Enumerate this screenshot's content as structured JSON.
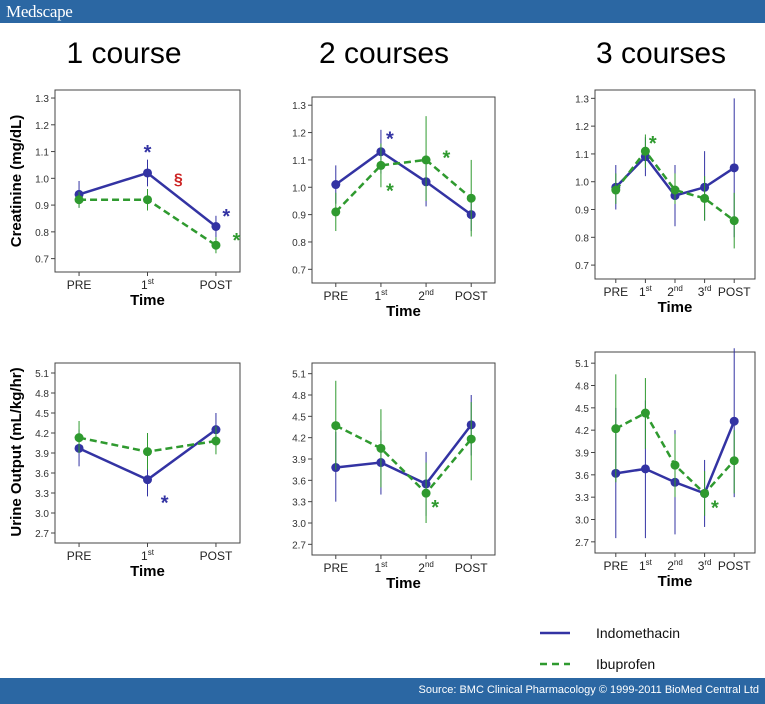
{
  "header": {
    "logo": "Medscape"
  },
  "footer": {
    "source": "Source: BMC Clinical Pharmacology © 1999-2011 BioMed Central Ltd"
  },
  "columns": [
    "1 course",
    "2 courses",
    "3 courses"
  ],
  "row_labels": [
    "Creatinine (mg/dL)",
    "Urine Output (mL/kg/hr)"
  ],
  "legend": [
    {
      "name": "Indomethacin",
      "color": "#3333a3",
      "style": "solid"
    },
    {
      "name": "Ibuprofen",
      "color": "#2f9a2f",
      "style": "dashed"
    }
  ],
  "colors": {
    "indomethacin": "#3333a3",
    "ibuprofen": "#2f9a2f",
    "section_mark": "#cc2222",
    "brand_bar": "#2b67a3"
  },
  "chart_data": [
    {
      "type": "line",
      "panel": "1 course / creatinine",
      "title": "1 course",
      "ylabel": "Creatinine (mg/dL)",
      "xlabel": "Time",
      "categories": [
        "PRE",
        "1st",
        "POST"
      ],
      "ylim": [
        0.65,
        1.33
      ],
      "yticks": [
        0.7,
        0.8,
        0.9,
        1.0,
        1.1,
        1.2,
        1.3
      ],
      "ytick_labels": [
        "0.7",
        "0.8",
        "0.9",
        "1.0",
        "1.1",
        "1.2",
        "1.3"
      ],
      "series": [
        {
          "name": "Indomethacin",
          "values": [
            0.94,
            1.02,
            0.82
          ],
          "err_low": [
            0.89,
            0.97,
            0.78
          ],
          "err_high": [
            0.99,
            1.07,
            0.86
          ]
        },
        {
          "name": "Ibuprofen",
          "values": [
            0.92,
            0.92,
            0.75
          ],
          "err_low": [
            0.89,
            0.88,
            0.72
          ],
          "err_high": [
            0.95,
            0.96,
            0.78
          ]
        }
      ],
      "annotations": [
        {
          "text": "*",
          "x": 1,
          "y": 1.11,
          "color": "blue"
        },
        {
          "text": "§",
          "x": 1.45,
          "y": 1.0,
          "color": "red"
        },
        {
          "text": "*",
          "x": 2.15,
          "y": 0.87,
          "color": "blue"
        },
        {
          "text": "*",
          "x": 2.3,
          "y": 0.78,
          "color": "green"
        }
      ]
    },
    {
      "type": "line",
      "panel": "2 courses / creatinine",
      "title": "2 courses",
      "xlabel": "Time",
      "categories": [
        "PRE",
        "1st",
        "2nd",
        "POST"
      ],
      "ylim": [
        0.65,
        1.33
      ],
      "yticks": [
        0.7,
        0.8,
        0.9,
        1.0,
        1.1,
        1.2,
        1.3
      ],
      "ytick_labels": [
        "0.7",
        "0.8",
        "0.9",
        "1.0",
        "1.1",
        "1.2",
        "1.3"
      ],
      "series": [
        {
          "name": "Indomethacin",
          "values": [
            1.01,
            1.13,
            1.02,
            0.9
          ],
          "err_low": [
            0.94,
            1.05,
            0.93,
            0.84
          ],
          "err_high": [
            1.08,
            1.21,
            1.11,
            0.96
          ]
        },
        {
          "name": "Ibuprofen",
          "values": [
            0.91,
            1.08,
            1.1,
            0.96
          ],
          "err_low": [
            0.84,
            1.0,
            0.95,
            0.82
          ],
          "err_high": [
            0.98,
            1.16,
            1.26,
            1.1
          ]
        }
      ],
      "annotations": [
        {
          "text": "*",
          "x": 1.2,
          "y": 1.19,
          "color": "blue"
        },
        {
          "text": "*",
          "x": 1.2,
          "y": 1.0,
          "color": "green"
        },
        {
          "text": "*",
          "x": 2.45,
          "y": 1.12,
          "color": "green"
        }
      ]
    },
    {
      "type": "line",
      "panel": "3 courses / creatinine",
      "title": "3 courses",
      "xlabel": "Time",
      "categories": [
        "PRE",
        "1st",
        "2nd",
        "3rd",
        "POST"
      ],
      "ylim": [
        0.65,
        1.33
      ],
      "yticks": [
        0.7,
        0.8,
        0.9,
        1.0,
        1.1,
        1.2,
        1.3
      ],
      "ytick_labels": [
        "0.7",
        "0.8",
        "0.9",
        "1.0",
        "1.1",
        "1.2",
        "1.3"
      ],
      "series": [
        {
          "name": "Indomethacin",
          "values": [
            0.98,
            1.09,
            0.95,
            0.98,
            1.05
          ],
          "err_low": [
            0.9,
            1.02,
            0.84,
            0.86,
            0.8
          ],
          "err_high": [
            1.06,
            1.16,
            1.06,
            1.11,
            1.3
          ]
        },
        {
          "name": "Ibuprofen",
          "values": [
            0.97,
            1.11,
            0.97,
            0.94,
            0.86
          ],
          "err_low": [
            0.92,
            1.05,
            0.92,
            0.86,
            0.76
          ],
          "err_high": [
            1.03,
            1.17,
            1.03,
            1.02,
            0.96
          ]
        }
      ],
      "annotations": [
        {
          "text": "*",
          "x": 1.25,
          "y": 1.15,
          "color": "green"
        }
      ]
    },
    {
      "type": "line",
      "panel": "1 course / urine output",
      "ylabel": "Urine Output (mL/kg/hr)",
      "xlabel": "Time",
      "categories": [
        "PRE",
        "1st",
        "POST"
      ],
      "ylim": [
        2.55,
        5.25
      ],
      "yticks": [
        2.7,
        3.0,
        3.3,
        3.6,
        3.9,
        4.2,
        4.5,
        4.8,
        5.1
      ],
      "ytick_labels": [
        "2.7",
        "3.0",
        "3.3",
        "3.6",
        "3.9",
        "4.2",
        "4.5",
        "4.8",
        "5.1"
      ],
      "series": [
        {
          "name": "Indomethacin",
          "values": [
            3.97,
            3.5,
            4.25
          ],
          "err_low": [
            3.7,
            3.25,
            4.0
          ],
          "err_high": [
            4.25,
            3.75,
            4.5
          ]
        },
        {
          "name": "Ibuprofen",
          "values": [
            4.13,
            3.92,
            4.08
          ],
          "err_low": [
            3.9,
            3.65,
            3.88
          ],
          "err_high": [
            4.38,
            4.2,
            4.3
          ]
        }
      ],
      "annotations": [
        {
          "text": "*",
          "x": 1.25,
          "y": 3.2,
          "color": "blue"
        }
      ]
    },
    {
      "type": "line",
      "panel": "2 courses / urine output",
      "xlabel": "Time",
      "categories": [
        "PRE",
        "1st",
        "2nd",
        "POST"
      ],
      "ylim": [
        2.55,
        5.25
      ],
      "yticks": [
        2.7,
        3.0,
        3.3,
        3.6,
        3.9,
        4.2,
        4.5,
        4.8,
        5.1
      ],
      "ytick_labels": [
        "2.7",
        "3.0",
        "3.3",
        "3.6",
        "3.9",
        "4.2",
        "4.5",
        "4.8",
        "5.1"
      ],
      "series": [
        {
          "name": "Indomethacin",
          "values": [
            3.78,
            3.85,
            3.55,
            4.38
          ],
          "err_low": [
            3.3,
            3.4,
            3.1,
            3.95
          ],
          "err_high": [
            4.28,
            4.3,
            4.0,
            4.8
          ]
        },
        {
          "name": "Ibuprofen",
          "values": [
            4.37,
            4.05,
            3.42,
            4.18
          ],
          "err_low": [
            3.75,
            3.5,
            3.0,
            3.6
          ],
          "err_high": [
            5.0,
            4.6,
            3.85,
            4.7
          ]
        }
      ],
      "annotations": [
        {
          "text": "*",
          "x": 2.2,
          "y": 3.27,
          "color": "green"
        }
      ]
    },
    {
      "type": "line",
      "panel": "3 courses / urine output",
      "xlabel": "Time",
      "categories": [
        "PRE",
        "1st",
        "2nd",
        "3rd",
        "POST"
      ],
      "ylim": [
        2.55,
        5.25
      ],
      "yticks": [
        2.7,
        3.0,
        3.3,
        3.6,
        3.9,
        4.2,
        4.5,
        4.8,
        5.1
      ],
      "ytick_labels": [
        "2.7",
        "3.0",
        "3.3",
        "3.6",
        "3.9",
        "4.2",
        "4.5",
        "4.8",
        "5.1"
      ],
      "series": [
        {
          "name": "Indomethacin",
          "values": [
            3.62,
            3.68,
            3.5,
            3.35,
            4.32
          ],
          "err_low": [
            2.75,
            2.75,
            2.8,
            2.9,
            3.3
          ],
          "err_high": [
            4.5,
            4.6,
            4.2,
            3.8,
            5.3
          ]
        },
        {
          "name": "Ibuprofen",
          "values": [
            4.22,
            4.43,
            3.73,
            3.35,
            3.79
          ],
          "err_low": [
            3.5,
            3.95,
            3.3,
            3.05,
            3.35
          ],
          "err_high": [
            4.95,
            4.9,
            4.15,
            3.65,
            4.2
          ]
        }
      ],
      "annotations": [
        {
          "text": "*",
          "x": 3.35,
          "y": 3.2,
          "color": "green"
        }
      ]
    }
  ]
}
